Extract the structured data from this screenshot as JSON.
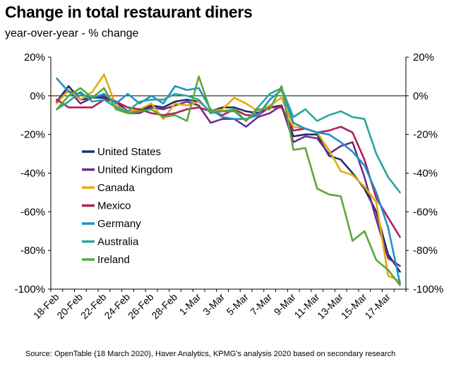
{
  "chart_data": {
    "type": "line",
    "title": "Change in total restaurant diners",
    "subtitle": "year-over-year - % change",
    "source": "Source: OpenTable (18 March 2020), Haver Analytics, KPMG's analysis 2020 based on secondary research",
    "x": [
      "18-Feb",
      "19-Feb",
      "20-Feb",
      "21-Feb",
      "22-Feb",
      "23-Feb",
      "24-Feb",
      "25-Feb",
      "26-Feb",
      "27-Feb",
      "28-Feb",
      "29-Feb",
      "1-Mar",
      "2-Mar",
      "3-Mar",
      "4-Mar",
      "5-Mar",
      "6-Mar",
      "7-Mar",
      "8-Mar",
      "9-Mar",
      "10-Mar",
      "11-Mar",
      "12-Mar",
      "13-Mar",
      "14-Mar",
      "15-Mar",
      "16-Mar",
      "17-Mar",
      "18-Mar"
    ],
    "x_tick_labels": [
      "18-Feb",
      "20-Feb",
      "22-Feb",
      "24-Feb",
      "26-Feb",
      "28-Feb",
      "1-Mar",
      "3-Mar",
      "5-Mar",
      "7-Mar",
      "9-Mar",
      "11-Mar",
      "13-Mar",
      "15-Mar",
      "17-Mar"
    ],
    "y_ticks": [
      "20%",
      "0%",
      "-20%",
      "-40%",
      "-60%",
      "-80%",
      "-100%"
    ],
    "y_tick_values": [
      20,
      0,
      -20,
      -40,
      -60,
      -80,
      -100
    ],
    "ylim": [
      -100,
      20
    ],
    "grid": false,
    "legend_position": "left",
    "series": [
      {
        "name": "United States",
        "color": "#1f2f6b",
        "values": [
          -3,
          5,
          -2,
          -1,
          -1,
          -3,
          -8,
          -8,
          -5,
          -6,
          -3,
          -2,
          -3,
          -8,
          -6,
          -6,
          -8,
          -9,
          -6,
          -5,
          -21,
          -20,
          -20,
          -31,
          -33,
          -40,
          -48,
          -60,
          -82,
          -91
        ]
      },
      {
        "name": "United Kingdom",
        "color": "#6b2d8f",
        "values": [
          -3,
          3,
          -4,
          -1,
          0,
          -3,
          -9,
          -9,
          -6,
          -7,
          -5,
          -3,
          -5,
          -14,
          -12,
          -12,
          -16,
          -11,
          -9,
          -5,
          -24,
          -21,
          -22,
          -30,
          -26,
          -24,
          -42,
          -64,
          -84,
          -88
        ]
      },
      {
        "name": "Canada",
        "color": "#e8a90c",
        "values": [
          -4,
          3,
          -2,
          2,
          11,
          -5,
          -8,
          -7,
          -4,
          -12,
          -4,
          -5,
          -3,
          -8,
          -7,
          -1,
          -4,
          -8,
          -5,
          -1,
          -16,
          -17,
          -19,
          -28,
          -39,
          -41,
          -47,
          -55,
          -93,
          -96
        ]
      },
      {
        "name": "Mexico",
        "color": "#b01f5c",
        "values": [
          -2,
          -6,
          -6,
          -6,
          -2,
          -3,
          -6,
          -7,
          -9,
          -10,
          -9,
          -7,
          -6,
          -8,
          -10,
          -7,
          -10,
          -10,
          -6,
          -6,
          -18,
          -17,
          -19,
          -18,
          -16,
          -19,
          -33,
          -53,
          -63,
          -73
        ]
      },
      {
        "name": "Germany",
        "color": "#1e92c8",
        "values": [
          9,
          2,
          1,
          -1,
          1,
          -4,
          1,
          -4,
          0,
          -4,
          5,
          3,
          4,
          -7,
          -11,
          -12,
          -12,
          -10,
          -2,
          3,
          -14,
          -17,
          -19,
          -20,
          -24,
          -29,
          -36,
          -50,
          -68,
          -97
        ]
      },
      {
        "name": "Australia",
        "color": "#2aa59a",
        "values": [
          -7,
          -3,
          2,
          -3,
          -2,
          -6,
          -8,
          -3,
          -2,
          -2,
          1,
          0,
          -2,
          -9,
          -8,
          -8,
          -13,
          -6,
          1,
          4,
          -11,
          -7,
          -13,
          -10,
          -8,
          -11,
          -12,
          -30,
          -42,
          -50
        ]
      },
      {
        "name": "Ireland",
        "color": "#5aa83a",
        "values": [
          -7,
          0,
          4,
          -1,
          4,
          -7,
          -9,
          -8,
          -7,
          -11,
          -10,
          -13,
          10,
          -8,
          -8,
          -7,
          -13,
          -7,
          -7,
          5,
          -28,
          -27,
          -48,
          -51,
          -52,
          -75,
          -70,
          -85,
          -90,
          -98
        ]
      }
    ]
  }
}
